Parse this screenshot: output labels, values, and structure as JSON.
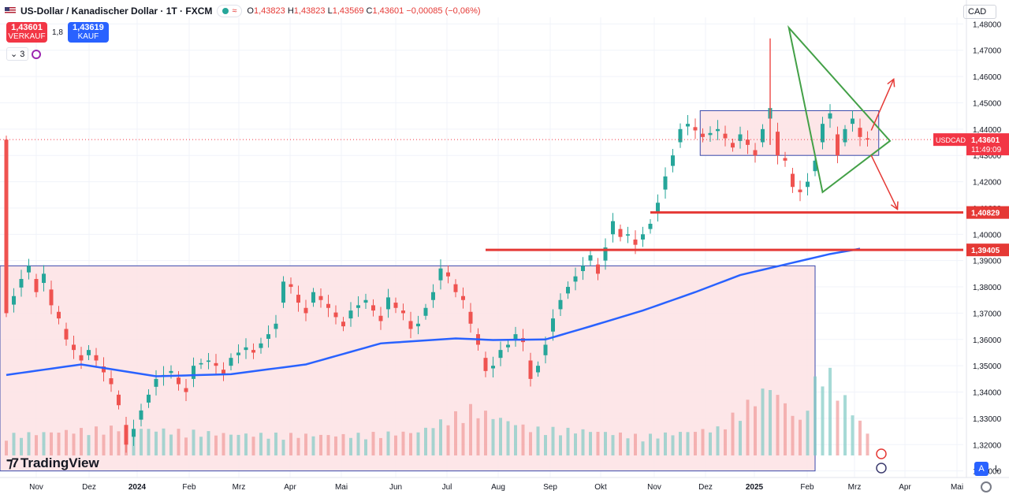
{
  "header": {
    "title": "US-Dollar / Kanadischer Dollar · 1T · FXCM",
    "pill_symbol": "≈",
    "ohlc": [
      {
        "label": "O",
        "value": "1,43823"
      },
      {
        "label": "H",
        "value": "1,43823"
      },
      {
        "label": "L",
        "value": "1,43569"
      },
      {
        "label": "C",
        "value": "1,43601"
      }
    ],
    "change": "−0,00085 (−0,06%)",
    "flag_icon": "us-flag-icon"
  },
  "trade": {
    "sell_price": "1,43601",
    "sell_label": "VERKAUF",
    "spread": "1,8",
    "buy_price": "1,43619",
    "buy_label": "KAUF"
  },
  "indicators": {
    "count": "3"
  },
  "currency": "CAD",
  "branding": {
    "logo_text": "TradingView"
  },
  "buttons": {
    "auto": "A",
    "log": "L"
  },
  "chart_data": {
    "type": "candlestick",
    "x_labels": [
      "Nov",
      "Dez",
      "2024",
      "Feb",
      "Mrz",
      "Apr",
      "Mai",
      "Jun",
      "Jul",
      "Aug",
      "Sep",
      "Okt",
      "Nov",
      "Dez",
      "2025",
      "Feb",
      "Mrz",
      "Apr",
      "Mai"
    ],
    "y_ticks": [
      "1,48000",
      "1,47000",
      "1,46000",
      "1,45000",
      "1,44000",
      "1,43000",
      "1,42000",
      "1,41000",
      "1,40000",
      "1,39000",
      "1,38000",
      "1,37000",
      "1,36000",
      "1,35000",
      "1,34000",
      "1,33000",
      "1,32000",
      "1,31000"
    ],
    "ylim": [
      1.3075,
      1.4825
    ],
    "close_path": [
      [
        0,
        1.37
      ],
      [
        2,
        1.383
      ],
      [
        3,
        1.388
      ],
      [
        4,
        1.378
      ],
      [
        5,
        1.385
      ],
      [
        6,
        1.373
      ],
      [
        7,
        1.368
      ],
      [
        8,
        1.36
      ],
      [
        10,
        1.352
      ],
      [
        11,
        1.356
      ],
      [
        12,
        1.352
      ],
      [
        14,
        1.343
      ],
      [
        15,
        1.335
      ],
      [
        16,
        1.32
      ],
      [
        17,
        1.326
      ],
      [
        18,
        1.333
      ],
      [
        20,
        1.345
      ],
      [
        22,
        1.348
      ],
      [
        23,
        1.343
      ],
      [
        24,
        1.34
      ],
      [
        25,
        1.35
      ],
      [
        27,
        1.352
      ],
      [
        28,
        1.35
      ],
      [
        29,
        1.347
      ],
      [
        30,
        1.353
      ],
      [
        32,
        1.357
      ],
      [
        33,
        1.355
      ],
      [
        35,
        1.362
      ],
      [
        36,
        1.366
      ],
      [
        37,
        1.382
      ],
      [
        38,
        1.38
      ],
      [
        39,
        1.374
      ],
      [
        40,
        1.37
      ],
      [
        41,
        1.378
      ],
      [
        43,
        1.372
      ],
      [
        45,
        1.365
      ],
      [
        46,
        1.371
      ],
      [
        48,
        1.375
      ],
      [
        50,
        1.367
      ],
      [
        51,
        1.376
      ],
      [
        52,
        1.372
      ],
      [
        53,
        1.37
      ],
      [
        54,
        1.364
      ],
      [
        55,
        1.366
      ],
      [
        56,
        1.372
      ],
      [
        57,
        1.378
      ],
      [
        58,
        1.387
      ],
      [
        59,
        1.384
      ],
      [
        60,
        1.378
      ],
      [
        61,
        1.375
      ],
      [
        62,
        1.366
      ],
      [
        63,
        1.358
      ],
      [
        64,
        1.348
      ],
      [
        65,
        1.35
      ],
      [
        66,
        1.356
      ],
      [
        67,
        1.358
      ],
      [
        68,
        1.362
      ],
      [
        69,
        1.359
      ],
      [
        70,
        1.345
      ],
      [
        71,
        1.35
      ],
      [
        72,
        1.358
      ],
      [
        73,
        1.368
      ],
      [
        74,
        1.375
      ],
      [
        75,
        1.38
      ],
      [
        76,
        1.384
      ],
      [
        77,
        1.388
      ],
      [
        78,
        1.392
      ],
      [
        79,
        1.385
      ],
      [
        80,
        1.395
      ],
      [
        81,
        1.405
      ],
      [
        82,
        1.399
      ],
      [
        83,
        1.4
      ],
      [
        84,
        1.396
      ],
      [
        85,
        1.4
      ],
      [
        86,
        1.404
      ],
      [
        87,
        1.412
      ],
      [
        88,
        1.422
      ],
      [
        89,
        1.43
      ],
      [
        90,
        1.44
      ],
      [
        91,
        1.442
      ],
      [
        93,
        1.437
      ],
      [
        95,
        1.44
      ],
      [
        97,
        1.433
      ],
      [
        98,
        1.438
      ],
      [
        100,
        1.43
      ],
      [
        101,
        1.44
      ],
      [
        102,
        1.448
      ],
      [
        103,
        1.43
      ],
      [
        104,
        1.428
      ],
      [
        105,
        1.418
      ],
      [
        106,
        1.416
      ],
      [
        107,
        1.42
      ],
      [
        108,
        1.428
      ],
      [
        109,
        1.442
      ],
      [
        110,
        1.446
      ],
      [
        111,
        1.43
      ],
      [
        112,
        1.44
      ],
      [
        113,
        1.444
      ],
      [
        114,
        1.437
      ],
      [
        115,
        1.436
      ]
    ],
    "ma_path": [
      [
        0,
        1.3465
      ],
      [
        10,
        1.3505
      ],
      [
        20,
        1.346
      ],
      [
        30,
        1.3468
      ],
      [
        40,
        1.3505
      ],
      [
        50,
        1.3585
      ],
      [
        60,
        1.3604
      ],
      [
        65,
        1.3598
      ],
      [
        72,
        1.36
      ],
      [
        78,
        1.365
      ],
      [
        85,
        1.371
      ],
      [
        92,
        1.378
      ],
      [
        98,
        1.3845
      ],
      [
        104,
        1.3885
      ],
      [
        110,
        1.3925
      ],
      [
        114,
        1.3945
      ]
    ],
    "volume_path": [
      [
        0,
        0.18
      ],
      [
        15,
        0.25
      ],
      [
        30,
        0.19
      ],
      [
        45,
        0.18
      ],
      [
        55,
        0.21
      ],
      [
        62,
        0.42
      ],
      [
        70,
        0.24
      ],
      [
        78,
        0.22
      ],
      [
        85,
        0.17
      ],
      [
        95,
        0.24
      ],
      [
        102,
        0.62
      ],
      [
        106,
        0.3
      ],
      [
        109,
        0.82
      ],
      [
        112,
        0.5
      ],
      [
        115,
        0.2
      ]
    ],
    "horizontal_levels": [
      {
        "label": "1,40829",
        "value": 1.40829,
        "from_x": 86,
        "color": "#e53935"
      },
      {
        "label": "1,39405",
        "value": 1.39405,
        "from_x": 64,
        "color": "#e53935"
      }
    ],
    "current_price": {
      "symbol": "USDCAD",
      "value": "1,43601",
      "countdown": "11:49:09",
      "color": "#f23645"
    },
    "rectangles": [
      {
        "x1": 0,
        "x2": 108,
        "y1": 1.388,
        "y2": 1.31,
        "fill": "#fde2e4",
        "stroke": "#3949ab"
      },
      {
        "x1": 93.5,
        "x2": 116.5,
        "y1": 1.447,
        "y2": 1.43,
        "fill": "#fde2e4",
        "stroke": "#3949ab"
      }
    ],
    "triangle": {
      "points": [
        [
          104.5,
          1.4785
        ],
        [
          118,
          1.4355
        ],
        [
          109,
          1.416
        ]
      ],
      "stroke": "#43a047"
    },
    "arrows": [
      {
        "from": [
          115.5,
          1.4395
        ],
        "to": [
          118.5,
          1.459
        ],
        "color": "#e53935"
      },
      {
        "from": [
          115.5,
          1.43
        ],
        "to": [
          119,
          1.4095
        ],
        "color": "#e53935"
      }
    ],
    "legend": "none",
    "grid": true
  }
}
